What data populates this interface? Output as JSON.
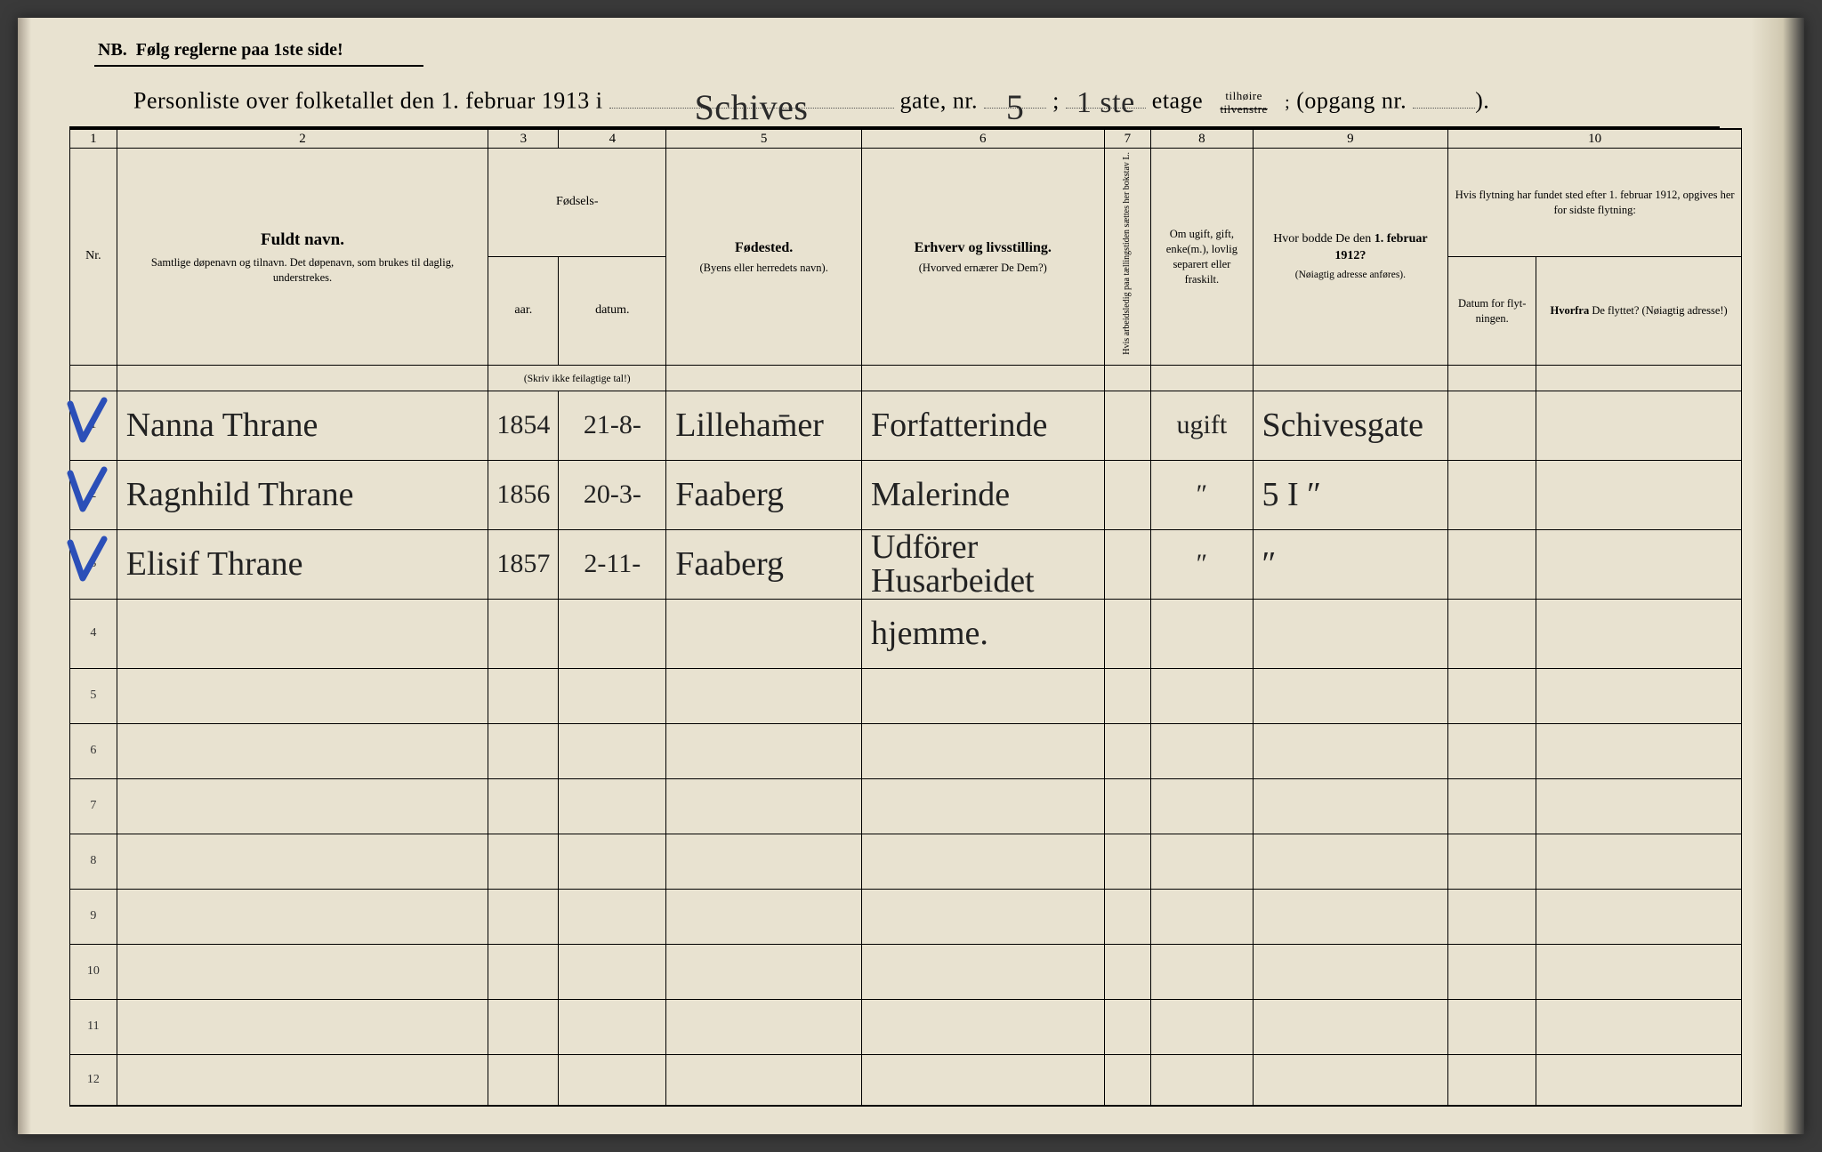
{
  "nb_text": "NB.  Følg reglerne paa 1ste side!",
  "title": {
    "pre_street": "Personliste over folketallet den 1. februar 1913 i",
    "street_hand": "Schives",
    "gate_label": "gate, nr.",
    "gate_nr_hand": "5",
    "semicolon": ";",
    "etage_hand": "1 ste",
    "etage_label": "etage",
    "side_top": "tilhøire",
    "side_bottom": "tilvenstre",
    "opgang_label": "(opgang nr.",
    "opgang_close": ")."
  },
  "col_numbers": [
    "1",
    "2",
    "3",
    "4",
    "5",
    "6",
    "7",
    "8",
    "9",
    "10"
  ],
  "headers": {
    "nr": "Nr.",
    "fuldt_navn": "Fuldt navn.",
    "fuldt_navn_sub": "Samtlige døpenavn og tilnavn. Det døpenavn, som brukes til daglig, understrekes.",
    "fodsels": "Fødsels-",
    "aar": "aar.",
    "datum": "datum.",
    "aar_datum_note": "(Skriv ikke feilagtige tal!)",
    "fodested": "Fødested.",
    "fodested_sub": "(Byens eller herredets navn).",
    "erhverv": "Erhverv og livsstilling.",
    "erhverv_sub": "(Hvorved ernærer De Dem?)",
    "col7_vert": "Hvis arbeidsledig paa tællingstiden sættes her bokstav L.",
    "ugift": "Om ugift, gift, enke(m.), lovlig separert eller fraskilt.",
    "bodde": "Hvor bodde De den 1. februar 1912?",
    "bodde_sub": "(Nøiagtig adresse anføres).",
    "flytning_top": "Hvis flytning har fundet sted efter 1. februar 1912, opgives her for sidste flytning:",
    "flytning_a": "Datum for flyt-ningen.",
    "flytning_b": "Hvorfra De flyttet? (Nøiagtig adresse!)"
  },
  "rows": [
    {
      "nr": "1",
      "check": true,
      "name": "Nanna Thrane",
      "year": "1854",
      "date": "21-8-",
      "place": "Lilleham̄er",
      "occ": "Forfatterinde",
      "marital": "ugift",
      "addr": "Schivesgate"
    },
    {
      "nr": "2",
      "check": true,
      "name": "Ragnhild Thrane",
      "year": "1856",
      "date": "20-3-",
      "place": "Faaberg",
      "occ": "Malerinde",
      "marital": "″",
      "addr": "5 I   ″"
    },
    {
      "nr": "3",
      "check": true,
      "name": "Elisif Thrane",
      "year": "1857",
      "date": "2-11-",
      "place": "Faaberg",
      "occ": "Udförer Husarbeidet",
      "marital": "″",
      "addr": "″"
    },
    {
      "nr": "4",
      "check": false,
      "name": "",
      "year": "",
      "date": "",
      "place": "",
      "occ": "hjemme.",
      "marital": "",
      "addr": ""
    },
    {
      "nr": "5"
    },
    {
      "nr": "6"
    },
    {
      "nr": "7"
    },
    {
      "nr": "8"
    },
    {
      "nr": "9"
    },
    {
      "nr": "10"
    },
    {
      "nr": "11"
    },
    {
      "nr": "12"
    }
  ],
  "colors": {
    "paper": "#e8e2d0",
    "ink": "#000000",
    "handwriting": "#222222",
    "blue_pencil": "#2b4fb8"
  }
}
